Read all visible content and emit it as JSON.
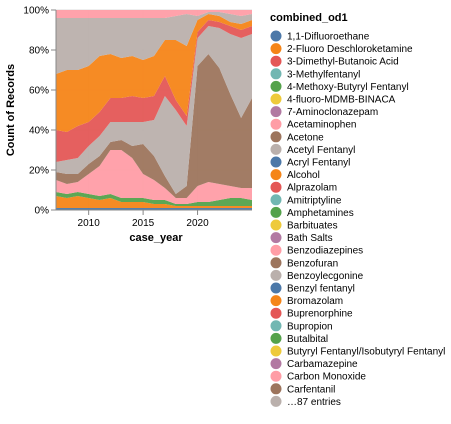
{
  "chart_data": {
    "type": "area",
    "stacked": true,
    "normalized": true,
    "xlabel": "case_year",
    "ylabel": "Count of Records",
    "xlim": [
      2007,
      2025
    ],
    "xticks": [
      2010,
      2015,
      2020
    ],
    "ylim": [
      0,
      1
    ],
    "yticks": [
      {
        "value": 0,
        "label": "0%"
      },
      {
        "value": 0.2,
        "label": "20%"
      },
      {
        "value": 0.4,
        "label": "40%"
      },
      {
        "value": 0.6,
        "label": "60%"
      },
      {
        "value": 0.8,
        "label": "80%"
      },
      {
        "value": 1.0,
        "label": "100%"
      }
    ],
    "x": [
      2007,
      2008,
      2009,
      2010,
      2011,
      2012,
      2013,
      2014,
      2015,
      2016,
      2017,
      2018,
      2019,
      2020,
      2021,
      2022,
      2023,
      2024,
      2025
    ],
    "series": [
      {
        "name": "1,1-Difluoroethane",
        "color": "#4c78a8",
        "values": [
          0.01,
          0.01,
          0.01,
          0.01,
          0.01,
          0.01,
          0.01,
          0.01,
          0.01,
          0.01,
          0.01,
          0.01,
          0.01,
          0.01,
          0.01,
          0.01,
          0.01,
          0.01,
          0.01
        ]
      },
      {
        "name": "Alcohol",
        "color": "#f58518",
        "values": [
          0.06,
          0.05,
          0.06,
          0.05,
          0.04,
          0.05,
          0.03,
          0.03,
          0.03,
          0.02,
          0.02,
          0.01,
          0.01,
          0.01,
          0.01,
          0.01,
          0.01,
          0.01,
          0.01
        ]
      },
      {
        "name": "Amphetamines",
        "color": "#54a24b",
        "values": [
          0.02,
          0.02,
          0.02,
          0.02,
          0.02,
          0.02,
          0.02,
          0.02,
          0.02,
          0.02,
          0.02,
          0.01,
          0.01,
          0.02,
          0.02,
          0.03,
          0.04,
          0.04,
          0.03
        ]
      },
      {
        "name": "Acetaminophen",
        "color": "#ff9da6",
        "values": [
          0.06,
          0.05,
          0.05,
          0.1,
          0.15,
          0.22,
          0.24,
          0.2,
          0.12,
          0.1,
          0.06,
          0.03,
          0.03,
          0.08,
          0.1,
          0.08,
          0.06,
          0.05,
          0.06
        ]
      },
      {
        "name": "Acetone",
        "color": "#9d755d",
        "values": [
          0.04,
          0.05,
          0.04,
          0.05,
          0.05,
          0.04,
          0.05,
          0.06,
          0.15,
          0.12,
          0.06,
          0.02,
          0.06,
          0.6,
          0.64,
          0.58,
          0.46,
          0.35,
          0.45
        ]
      },
      {
        "name": "Acetyl Fentanyl",
        "color": "#bab0ac",
        "values": [
          0.05,
          0.07,
          0.08,
          0.09,
          0.1,
          0.1,
          0.09,
          0.12,
          0.11,
          0.18,
          0.4,
          0.42,
          0.3,
          0.14,
          0.14,
          0.2,
          0.3,
          0.4,
          0.32
        ]
      },
      {
        "name": "Alprazolam",
        "color": "#e45756",
        "values": [
          0.16,
          0.14,
          0.16,
          0.12,
          0.12,
          0.12,
          0.12,
          0.13,
          0.12,
          0.12,
          0.1,
          0.05,
          0.05,
          0.03,
          0.03,
          0.03,
          0.04,
          0.04,
          0.04
        ]
      },
      {
        "name": "Bromazolam",
        "color": "#f58518",
        "values": [
          0.28,
          0.31,
          0.28,
          0.28,
          0.28,
          0.22,
          0.2,
          0.2,
          0.19,
          0.2,
          0.18,
          0.3,
          0.35,
          0.06,
          0.03,
          0.03,
          0.02,
          0.03,
          0.03
        ]
      },
      {
        "name": "Benzoylecgonine",
        "color": "#bab0ac",
        "values": [
          0.28,
          0.26,
          0.26,
          0.24,
          0.19,
          0.18,
          0.2,
          0.19,
          0.21,
          0.19,
          0.11,
          0.12,
          0.16,
          0.02,
          0.01,
          0.02,
          0.04,
          0.04,
          0.03
        ]
      },
      {
        "name": "Carbon Monoxide",
        "color": "#ff9da6",
        "values": [
          0.04,
          0.04,
          0.04,
          0.04,
          0.04,
          0.04,
          0.04,
          0.04,
          0.04,
          0.04,
          0.04,
          0.03,
          0.02,
          0.03,
          0.01,
          0.01,
          0.02,
          0.03,
          0.02
        ]
      }
    ],
    "legend": {
      "title": "combined_od1",
      "position": "right",
      "entries": [
        {
          "label": "1,1-Difluoroethane",
          "color": "#4c78a8"
        },
        {
          "label": "2-Fluoro Deschloroketamine",
          "color": "#f58518"
        },
        {
          "label": "3-Dimethyl-Butanoic Acid",
          "color": "#e45756"
        },
        {
          "label": "3-Methylfentanyl",
          "color": "#72b7b2"
        },
        {
          "label": "4-Methoxy-Butyryl Fentanyl",
          "color": "#54a24b"
        },
        {
          "label": "4-fluoro-MDMB-BINACA",
          "color": "#eeca3b"
        },
        {
          "label": "7-Aminoclonazepam",
          "color": "#b279a2"
        },
        {
          "label": "Acetaminophen",
          "color": "#ff9da6"
        },
        {
          "label": "Acetone",
          "color": "#9d755d"
        },
        {
          "label": "Acetyl Fentanyl",
          "color": "#bab0ac"
        },
        {
          "label": "Acryl Fentanyl",
          "color": "#4c78a8"
        },
        {
          "label": "Alcohol",
          "color": "#f58518"
        },
        {
          "label": "Alprazolam",
          "color": "#e45756"
        },
        {
          "label": "Amitriptyline",
          "color": "#72b7b2"
        },
        {
          "label": "Amphetamines",
          "color": "#54a24b"
        },
        {
          "label": "Barbituates",
          "color": "#eeca3b"
        },
        {
          "label": "Bath Salts",
          "color": "#b279a2"
        },
        {
          "label": "Benzodiazepines",
          "color": "#ff9da6"
        },
        {
          "label": "Benzofuran",
          "color": "#9d755d"
        },
        {
          "label": "Benzoylecgonine",
          "color": "#bab0ac"
        },
        {
          "label": "Benzyl fentanyl",
          "color": "#4c78a8"
        },
        {
          "label": "Bromazolam",
          "color": "#f58518"
        },
        {
          "label": "Buprenorphine",
          "color": "#e45756"
        },
        {
          "label": "Bupropion",
          "color": "#72b7b2"
        },
        {
          "label": "Butalbital",
          "color": "#54a24b"
        },
        {
          "label": "Butyryl Fentanyl/Isobutyryl Fentanyl",
          "color": "#eeca3b"
        },
        {
          "label": "Carbamazepine",
          "color": "#b279a2"
        },
        {
          "label": "Carbon Monoxide",
          "color": "#ff9da6"
        },
        {
          "label": "Carfentanil",
          "color": "#9d755d"
        },
        {
          "label": "…87 entries",
          "color": "#bab0ac"
        }
      ]
    }
  }
}
